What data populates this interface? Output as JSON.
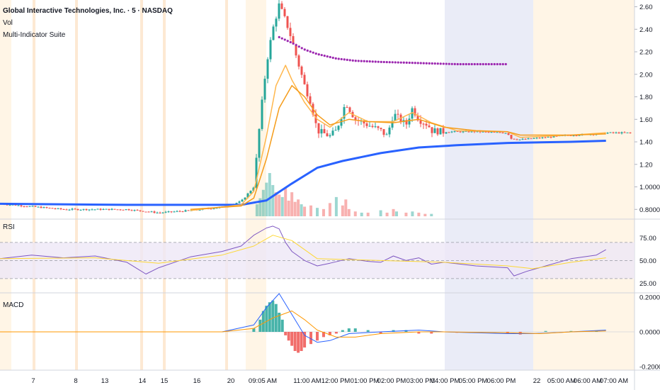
{
  "header": {
    "title": "Global Interactive Technologies, Inc. · 5 · NASDAQ",
    "indicator1": "Vol",
    "indicator2": "Multi-Indicator Suite"
  },
  "rsi_panel": {
    "label": "RSI",
    "levels": [
      "75.00",
      "50.00",
      "25.00"
    ]
  },
  "macd_panel": {
    "label": "MACD",
    "levels": [
      "0.2000",
      "0.0000",
      "-0.2000"
    ]
  },
  "colors": {
    "up": "#26a69a",
    "down": "#ef5350",
    "ma_long": "#2962ff",
    "ma_fast": "#ffb74d",
    "ma_mid": "#f59c1a",
    "vwap": "#9c27b0",
    "rsi": "#7e57c2",
    "rsi_signal": "#fdd835",
    "macd": "#2962ff",
    "macd_signal": "#ff9800",
    "premarket_shade": "#fff3e0",
    "afterhours_shade": "#e8eaf6"
  },
  "chart_data": [
    {
      "type": "candlestick",
      "title": "Global Interactive Technologies, Inc. · 5 · NASDAQ",
      "ylim": [
        0.72,
        2.66
      ],
      "y_ticks": [
        "2.60",
        "2.40",
        "2.20",
        "2.00",
        "1.80",
        "1.60",
        "1.40",
        "1.20",
        "1.0000",
        "0.8000"
      ],
      "x_ticks": [
        "7",
        "8",
        "13",
        "14",
        "15",
        "16",
        "20",
        "09:05 AM",
        "11:00 AM",
        "12:00 PM",
        "01:00 PM",
        "02:00 PM",
        "03:00 PM",
        "04:00 PM",
        "05:00 PM",
        "06:00 PM",
        "22",
        "05:00 AM",
        "06:00 AM",
        "07:00 AM"
      ],
      "close_path": [
        [
          0.0,
          0.85
        ],
        [
          0.1,
          0.8
        ],
        [
          0.2,
          0.8
        ],
        [
          0.25,
          0.77
        ],
        [
          0.3,
          0.79
        ],
        [
          0.35,
          0.82
        ],
        [
          0.38,
          0.87
        ],
        [
          0.4,
          1.0
        ],
        [
          0.41,
          1.6
        ],
        [
          0.42,
          2.1
        ],
        [
          0.43,
          2.4
        ],
        [
          0.44,
          2.62
        ],
        [
          0.455,
          2.4
        ],
        [
          0.47,
          2.1
        ],
        [
          0.48,
          1.9
        ],
        [
          0.49,
          1.75
        ],
        [
          0.5,
          1.5
        ],
        [
          0.52,
          1.45
        ],
        [
          0.53,
          1.5
        ],
        [
          0.545,
          1.75
        ],
        [
          0.56,
          1.6
        ],
        [
          0.58,
          1.55
        ],
        [
          0.6,
          1.5
        ],
        [
          0.61,
          1.45
        ],
        [
          0.62,
          1.65
        ],
        [
          0.64,
          1.55
        ],
        [
          0.65,
          1.7
        ],
        [
          0.66,
          1.6
        ],
        [
          0.675,
          1.55
        ],
        [
          0.68,
          1.5
        ],
        [
          0.7,
          1.49
        ],
        [
          0.75,
          1.49
        ],
        [
          0.8,
          1.48
        ],
        [
          0.805,
          1.43
        ],
        [
          0.82,
          1.42
        ],
        [
          0.86,
          1.44
        ],
        [
          0.9,
          1.46
        ],
        [
          0.94,
          1.47
        ],
        [
          0.955,
          1.48
        ]
      ],
      "series": [
        {
          "name": "",
          "kind": "long-ma",
          "values": [
            [
              0.0,
              0.85
            ],
            [
              0.2,
              0.84
            ],
            [
              0.38,
              0.84
            ],
            [
              0.42,
              0.88
            ],
            [
              0.46,
              1.03
            ],
            [
              0.5,
              1.17
            ],
            [
              0.54,
              1.23
            ],
            [
              0.6,
              1.3
            ],
            [
              0.66,
              1.35
            ],
            [
              0.72,
              1.37
            ],
            [
              0.8,
              1.39
            ],
            [
              0.9,
              1.4
            ],
            [
              0.955,
              1.41
            ]
          ]
        },
        {
          "name": "",
          "kind": "vwap-dots",
          "values": [
            [
              0.44,
              2.33
            ],
            [
              0.46,
              2.28
            ],
            [
              0.48,
              2.22
            ],
            [
              0.5,
              2.18
            ],
            [
              0.53,
              2.14
            ],
            [
              0.56,
              2.12
            ],
            [
              0.6,
              2.11
            ],
            [
              0.66,
              2.1
            ],
            [
              0.72,
              2.09
            ],
            [
              0.8,
              2.09
            ]
          ]
        },
        {
          "name": "",
          "kind": "fast-ma",
          "values": [
            [
              0.3,
              0.79
            ],
            [
              0.38,
              0.84
            ],
            [
              0.4,
              0.96
            ],
            [
              0.42,
              1.45
            ],
            [
              0.435,
              1.9
            ],
            [
              0.45,
              2.08
            ],
            [
              0.46,
              1.95
            ],
            [
              0.48,
              1.75
            ],
            [
              0.5,
              1.6
            ],
            [
              0.52,
              1.53
            ],
            [
              0.55,
              1.66
            ],
            [
              0.58,
              1.58
            ],
            [
              0.62,
              1.58
            ],
            [
              0.65,
              1.66
            ],
            [
              0.68,
              1.57
            ],
            [
              0.72,
              1.5
            ],
            [
              0.8,
              1.49
            ],
            [
              0.82,
              1.44
            ],
            [
              0.9,
              1.46
            ],
            [
              0.955,
              1.48
            ]
          ]
        },
        {
          "name": "",
          "kind": "mid-ma",
          "values": [
            [
              0.3,
              0.8
            ],
            [
              0.38,
              0.83
            ],
            [
              0.4,
              0.9
            ],
            [
              0.42,
              1.25
            ],
            [
              0.44,
              1.7
            ],
            [
              0.46,
              1.9
            ],
            [
              0.48,
              1.8
            ],
            [
              0.5,
              1.64
            ],
            [
              0.52,
              1.55
            ],
            [
              0.55,
              1.6
            ],
            [
              0.58,
              1.58
            ],
            [
              0.62,
              1.57
            ],
            [
              0.66,
              1.6
            ],
            [
              0.7,
              1.53
            ],
            [
              0.75,
              1.5
            ],
            [
              0.8,
              1.49
            ],
            [
              0.82,
              1.46
            ],
            [
              0.9,
              1.46
            ],
            [
              0.955,
              1.47
            ]
          ]
        }
      ],
      "volume": {
        "bars": [
          [
            0.405,
            0.1,
            "up"
          ],
          [
            0.41,
            0.15,
            "up"
          ],
          [
            0.415,
            0.22,
            "up"
          ],
          [
            0.42,
            0.28,
            "up"
          ],
          [
            0.425,
            0.36,
            "up"
          ],
          [
            0.43,
            0.26,
            "up"
          ],
          [
            0.435,
            0.2,
            "down"
          ],
          [
            0.44,
            0.18,
            "down"
          ],
          [
            0.445,
            0.16,
            "up"
          ],
          [
            0.45,
            0.24,
            "down"
          ],
          [
            0.455,
            0.13,
            "down"
          ],
          [
            0.46,
            0.2,
            "down"
          ],
          [
            0.465,
            0.12,
            "down"
          ],
          [
            0.47,
            0.14,
            "down"
          ],
          [
            0.475,
            0.1,
            "up"
          ],
          [
            0.48,
            0.08,
            "down"
          ],
          [
            0.49,
            0.09,
            "down"
          ],
          [
            0.5,
            0.07,
            "up"
          ],
          [
            0.51,
            0.06,
            "down"
          ],
          [
            0.52,
            0.11,
            "down"
          ],
          [
            0.53,
            0.16,
            "up"
          ],
          [
            0.54,
            0.09,
            "down"
          ],
          [
            0.545,
            0.14,
            "down"
          ],
          [
            0.55,
            0.06,
            "down"
          ],
          [
            0.56,
            0.04,
            "down"
          ],
          [
            0.57,
            0.03,
            "up"
          ],
          [
            0.58,
            0.03,
            "down"
          ],
          [
            0.6,
            0.05,
            "up"
          ],
          [
            0.61,
            0.03,
            "down"
          ],
          [
            0.62,
            0.06,
            "down"
          ],
          [
            0.625,
            0.04,
            "up"
          ],
          [
            0.64,
            0.03,
            "down"
          ],
          [
            0.65,
            0.04,
            "up"
          ],
          [
            0.66,
            0.03,
            "down"
          ],
          [
            0.67,
            0.02,
            "down"
          ],
          [
            0.68,
            0.02,
            "up"
          ]
        ]
      }
    },
    {
      "type": "line",
      "title": "RSI",
      "ylim": [
        15,
        95
      ],
      "y_ticks": [
        "75.00",
        "50.00",
        "25.00"
      ],
      "bands": [
        30,
        70
      ],
      "series": [
        {
          "name": "",
          "kind": "rsi",
          "values": [
            [
              0.0,
              52
            ],
            [
              0.05,
              56
            ],
            [
              0.1,
              53
            ],
            [
              0.15,
              55
            ],
            [
              0.2,
              48
            ],
            [
              0.23,
              35
            ],
            [
              0.25,
              42
            ],
            [
              0.3,
              54
            ],
            [
              0.35,
              60
            ],
            [
              0.38,
              66
            ],
            [
              0.4,
              78
            ],
            [
              0.42,
              86
            ],
            [
              0.43,
              88
            ],
            [
              0.44,
              85
            ],
            [
              0.45,
              70
            ],
            [
              0.46,
              60
            ],
            [
              0.48,
              50
            ],
            [
              0.5,
              44
            ],
            [
              0.52,
              47
            ],
            [
              0.55,
              52
            ],
            [
              0.58,
              49
            ],
            [
              0.6,
              48
            ],
            [
              0.62,
              55
            ],
            [
              0.64,
              50
            ],
            [
              0.66,
              53
            ],
            [
              0.68,
              46
            ],
            [
              0.7,
              48
            ],
            [
              0.75,
              44
            ],
            [
              0.8,
              42
            ],
            [
              0.81,
              33
            ],
            [
              0.83,
              38
            ],
            [
              0.86,
              44
            ],
            [
              0.9,
              52
            ],
            [
              0.94,
              56
            ],
            [
              0.955,
              62
            ]
          ]
        },
        {
          "name": "",
          "kind": "rsi-signal",
          "values": [
            [
              0.0,
              52
            ],
            [
              0.15,
              53
            ],
            [
              0.25,
              47
            ],
            [
              0.35,
              56
            ],
            [
              0.4,
              66
            ],
            [
              0.43,
              78
            ],
            [
              0.46,
              72
            ],
            [
              0.5,
              52
            ],
            [
              0.6,
              50
            ],
            [
              0.7,
              48
            ],
            [
              0.8,
              44
            ],
            [
              0.84,
              41
            ],
            [
              0.9,
              48
            ],
            [
              0.955,
              53
            ]
          ]
        }
      ]
    },
    {
      "type": "bar",
      "title": "MACD",
      "ylim": [
        -0.22,
        0.22
      ],
      "y_ticks": [
        "0.2000",
        "0.0000",
        "-0.2000"
      ],
      "series": [
        {
          "name": "",
          "kind": "histogram",
          "values": [
            [
              0.4,
              0.02
            ],
            [
              0.41,
              0.07
            ],
            [
              0.415,
              0.12
            ],
            [
              0.42,
              0.15
            ],
            [
              0.425,
              0.17
            ],
            [
              0.43,
              0.18
            ],
            [
              0.435,
              0.16
            ],
            [
              0.44,
              0.11
            ],
            [
              0.445,
              0.07
            ],
            [
              0.45,
              -0.02
            ],
            [
              0.455,
              -0.05
            ],
            [
              0.46,
              -0.08
            ],
            [
              0.465,
              -0.11
            ],
            [
              0.47,
              -0.12
            ],
            [
              0.475,
              -0.11
            ],
            [
              0.48,
              -0.09
            ],
            [
              0.49,
              -0.07
            ],
            [
              0.5,
              -0.05
            ],
            [
              0.51,
              -0.03
            ],
            [
              0.52,
              -0.02
            ],
            [
              0.53,
              -0.01
            ],
            [
              0.54,
              0.01
            ],
            [
              0.55,
              0.02
            ],
            [
              0.56,
              0.02
            ],
            [
              0.58,
              0.01
            ],
            [
              0.6,
              -0.01
            ],
            [
              0.62,
              0.01
            ],
            [
              0.64,
              0.01
            ],
            [
              0.66,
              -0.01
            ],
            [
              0.68,
              -0.01
            ],
            [
              0.72,
              -0.005
            ],
            [
              0.8,
              -0.01
            ],
            [
              0.82,
              -0.015
            ],
            [
              0.86,
              0.005
            ],
            [
              0.9,
              0.005
            ],
            [
              0.94,
              0.005
            ]
          ]
        },
        {
          "name": "",
          "kind": "macd-line",
          "values": [
            [
              0.0,
              0.0
            ],
            [
              0.35,
              0.0
            ],
            [
              0.4,
              0.04
            ],
            [
              0.42,
              0.14
            ],
            [
              0.44,
              0.22
            ],
            [
              0.46,
              0.1
            ],
            [
              0.48,
              -0.02
            ],
            [
              0.5,
              -0.06
            ],
            [
              0.52,
              -0.05
            ],
            [
              0.55,
              -0.01
            ],
            [
              0.6,
              0.0
            ],
            [
              0.66,
              0.01
            ],
            [
              0.7,
              0.0
            ],
            [
              0.8,
              -0.01
            ],
            [
              0.84,
              -0.01
            ],
            [
              0.9,
              0.0
            ],
            [
              0.955,
              0.01
            ]
          ]
        },
        {
          "name": "",
          "kind": "macd-signal",
          "values": [
            [
              0.0,
              0.0
            ],
            [
              0.35,
              0.0
            ],
            [
              0.4,
              0.02
            ],
            [
              0.43,
              0.08
            ],
            [
              0.46,
              0.12
            ],
            [
              0.48,
              0.07
            ],
            [
              0.5,
              0.01
            ],
            [
              0.53,
              -0.03
            ],
            [
              0.56,
              -0.03
            ],
            [
              0.6,
              -0.01
            ],
            [
              0.66,
              0.0
            ],
            [
              0.7,
              0.0
            ],
            [
              0.8,
              -0.005
            ],
            [
              0.85,
              -0.01
            ],
            [
              0.9,
              0.0
            ],
            [
              0.955,
              0.005
            ]
          ]
        }
      ]
    }
  ]
}
